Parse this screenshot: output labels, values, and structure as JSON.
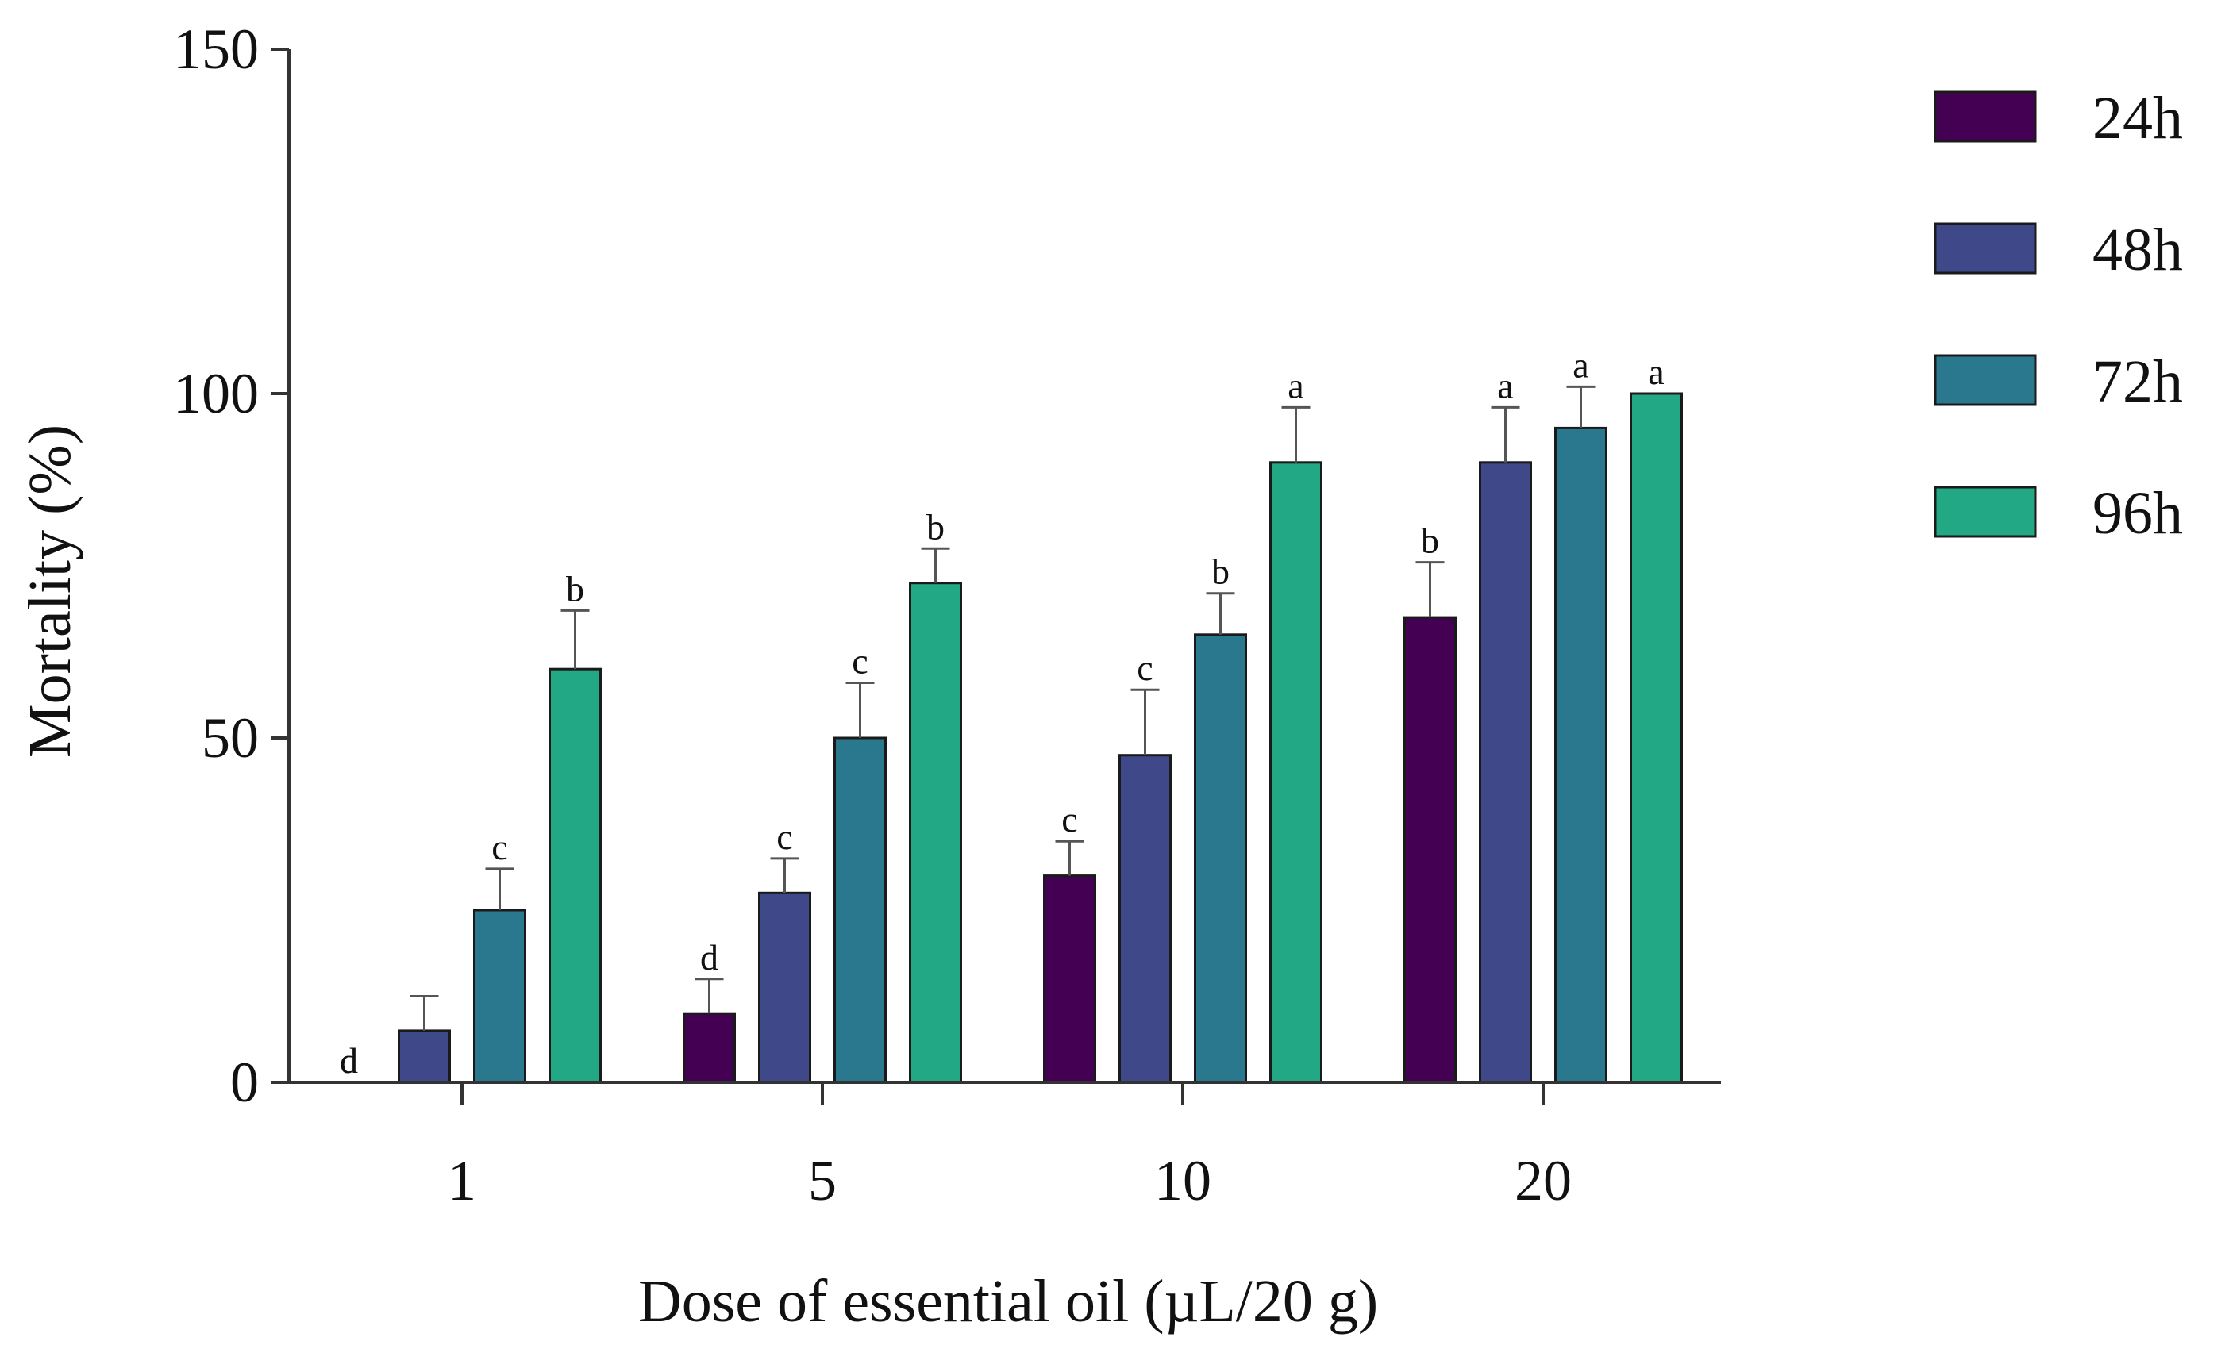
{
  "chart_data": {
    "type": "bar",
    "title": "",
    "xlabel": "Dose of essential oil (µL/20 g)",
    "ylabel": "Mortality (%)",
    "ylim": [
      0,
      150
    ],
    "yticks": [
      "0",
      "50",
      "100",
      "150"
    ],
    "categories": [
      "1",
      "5",
      "10",
      "20"
    ],
    "legend_position": "right",
    "series": [
      {
        "name": "24h",
        "color": "#440154",
        "values": [
          0,
          10,
          30,
          67.5
        ],
        "errors": [
          0,
          5,
          5,
          8
        ],
        "labels": [
          "d",
          "d",
          "c",
          "b"
        ]
      },
      {
        "name": "48h",
        "color": "#3f4889",
        "values": [
          7.5,
          27.5,
          47.5,
          90
        ],
        "errors": [
          5,
          5,
          9.5,
          8
        ],
        "labels": [
          "",
          "c",
          "c",
          "a"
        ]
      },
      {
        "name": "72h",
        "color": "#2a788e",
        "values": [
          25,
          50,
          65,
          95
        ],
        "errors": [
          6,
          8,
          6,
          6
        ],
        "labels": [
          "c",
          "c",
          "b",
          "a"
        ]
      },
      {
        "name": "96h",
        "color": "#22a884",
        "values": [
          60,
          72.5,
          90,
          100
        ],
        "errors": [
          8.5,
          5,
          8,
          0
        ],
        "labels": [
          "b",
          "b",
          "a",
          "a"
        ]
      }
    ]
  }
}
